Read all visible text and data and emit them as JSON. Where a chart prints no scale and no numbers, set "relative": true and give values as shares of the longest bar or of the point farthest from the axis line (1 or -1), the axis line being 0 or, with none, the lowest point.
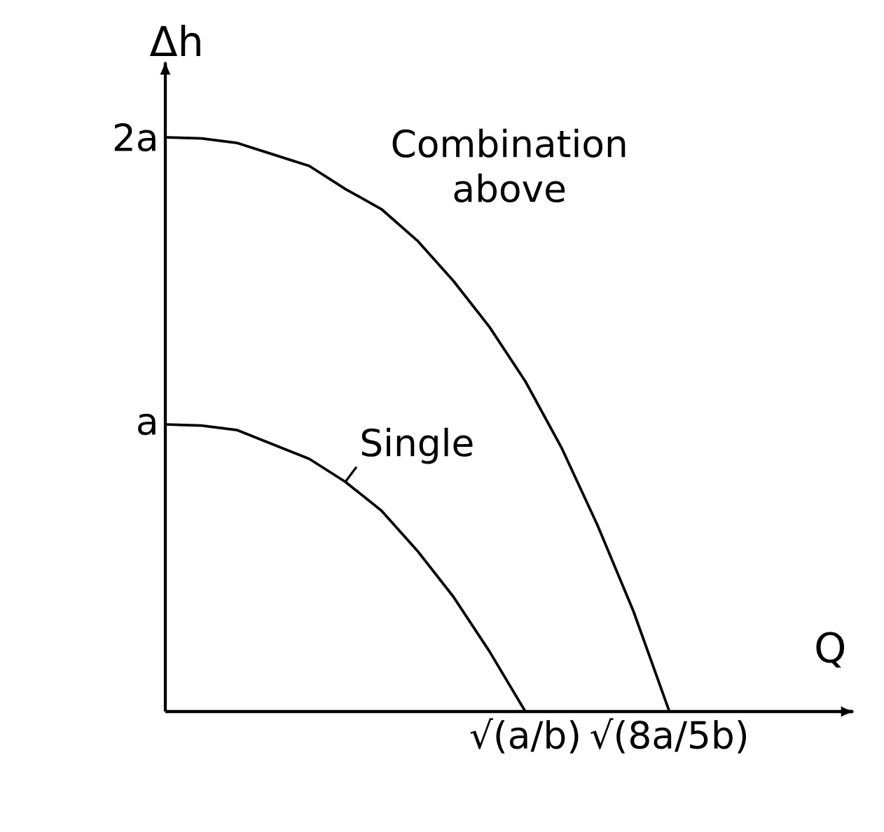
{
  "chart_data": {
    "type": "line",
    "xlabel": "Q",
    "ylabel": "Δh",
    "relative": true,
    "categories": [
      null,
      null,
      null,
      null,
      null,
      null,
      null,
      null,
      null,
      null,
      null,
      null,
      null,
      null,
      null,
      null,
      null,
      null,
      null,
      null
    ],
    "annotations": [
      "a",
      "2a",
      "√(a/b)",
      "√(8a/5b)"
    ],
    "grid": false,
    "legend": false,
    "marker": "none",
    "line_style": "solid",
    "series": [
      {
        "name": "Single",
        "color": "#000000",
        "values": [
          0.5,
          0.498,
          0.49,
          0.465,
          0.44,
          0.4,
          0.35,
          0.28,
          0.2,
          0.105,
          0,
          null,
          null,
          null,
          null,
          null,
          null,
          null,
          null,
          null
        ]
      },
      {
        "name": "Combination above",
        "color": "#000000",
        "values": [
          1.0,
          0.998,
          0.99,
          0.97,
          0.95,
          0.91,
          0.875,
          0.82,
          0.75,
          0.67,
          0.575,
          0.46,
          0.325,
          0.175,
          0,
          null,
          null,
          null,
          null,
          null
        ]
      }
    ]
  }
}
